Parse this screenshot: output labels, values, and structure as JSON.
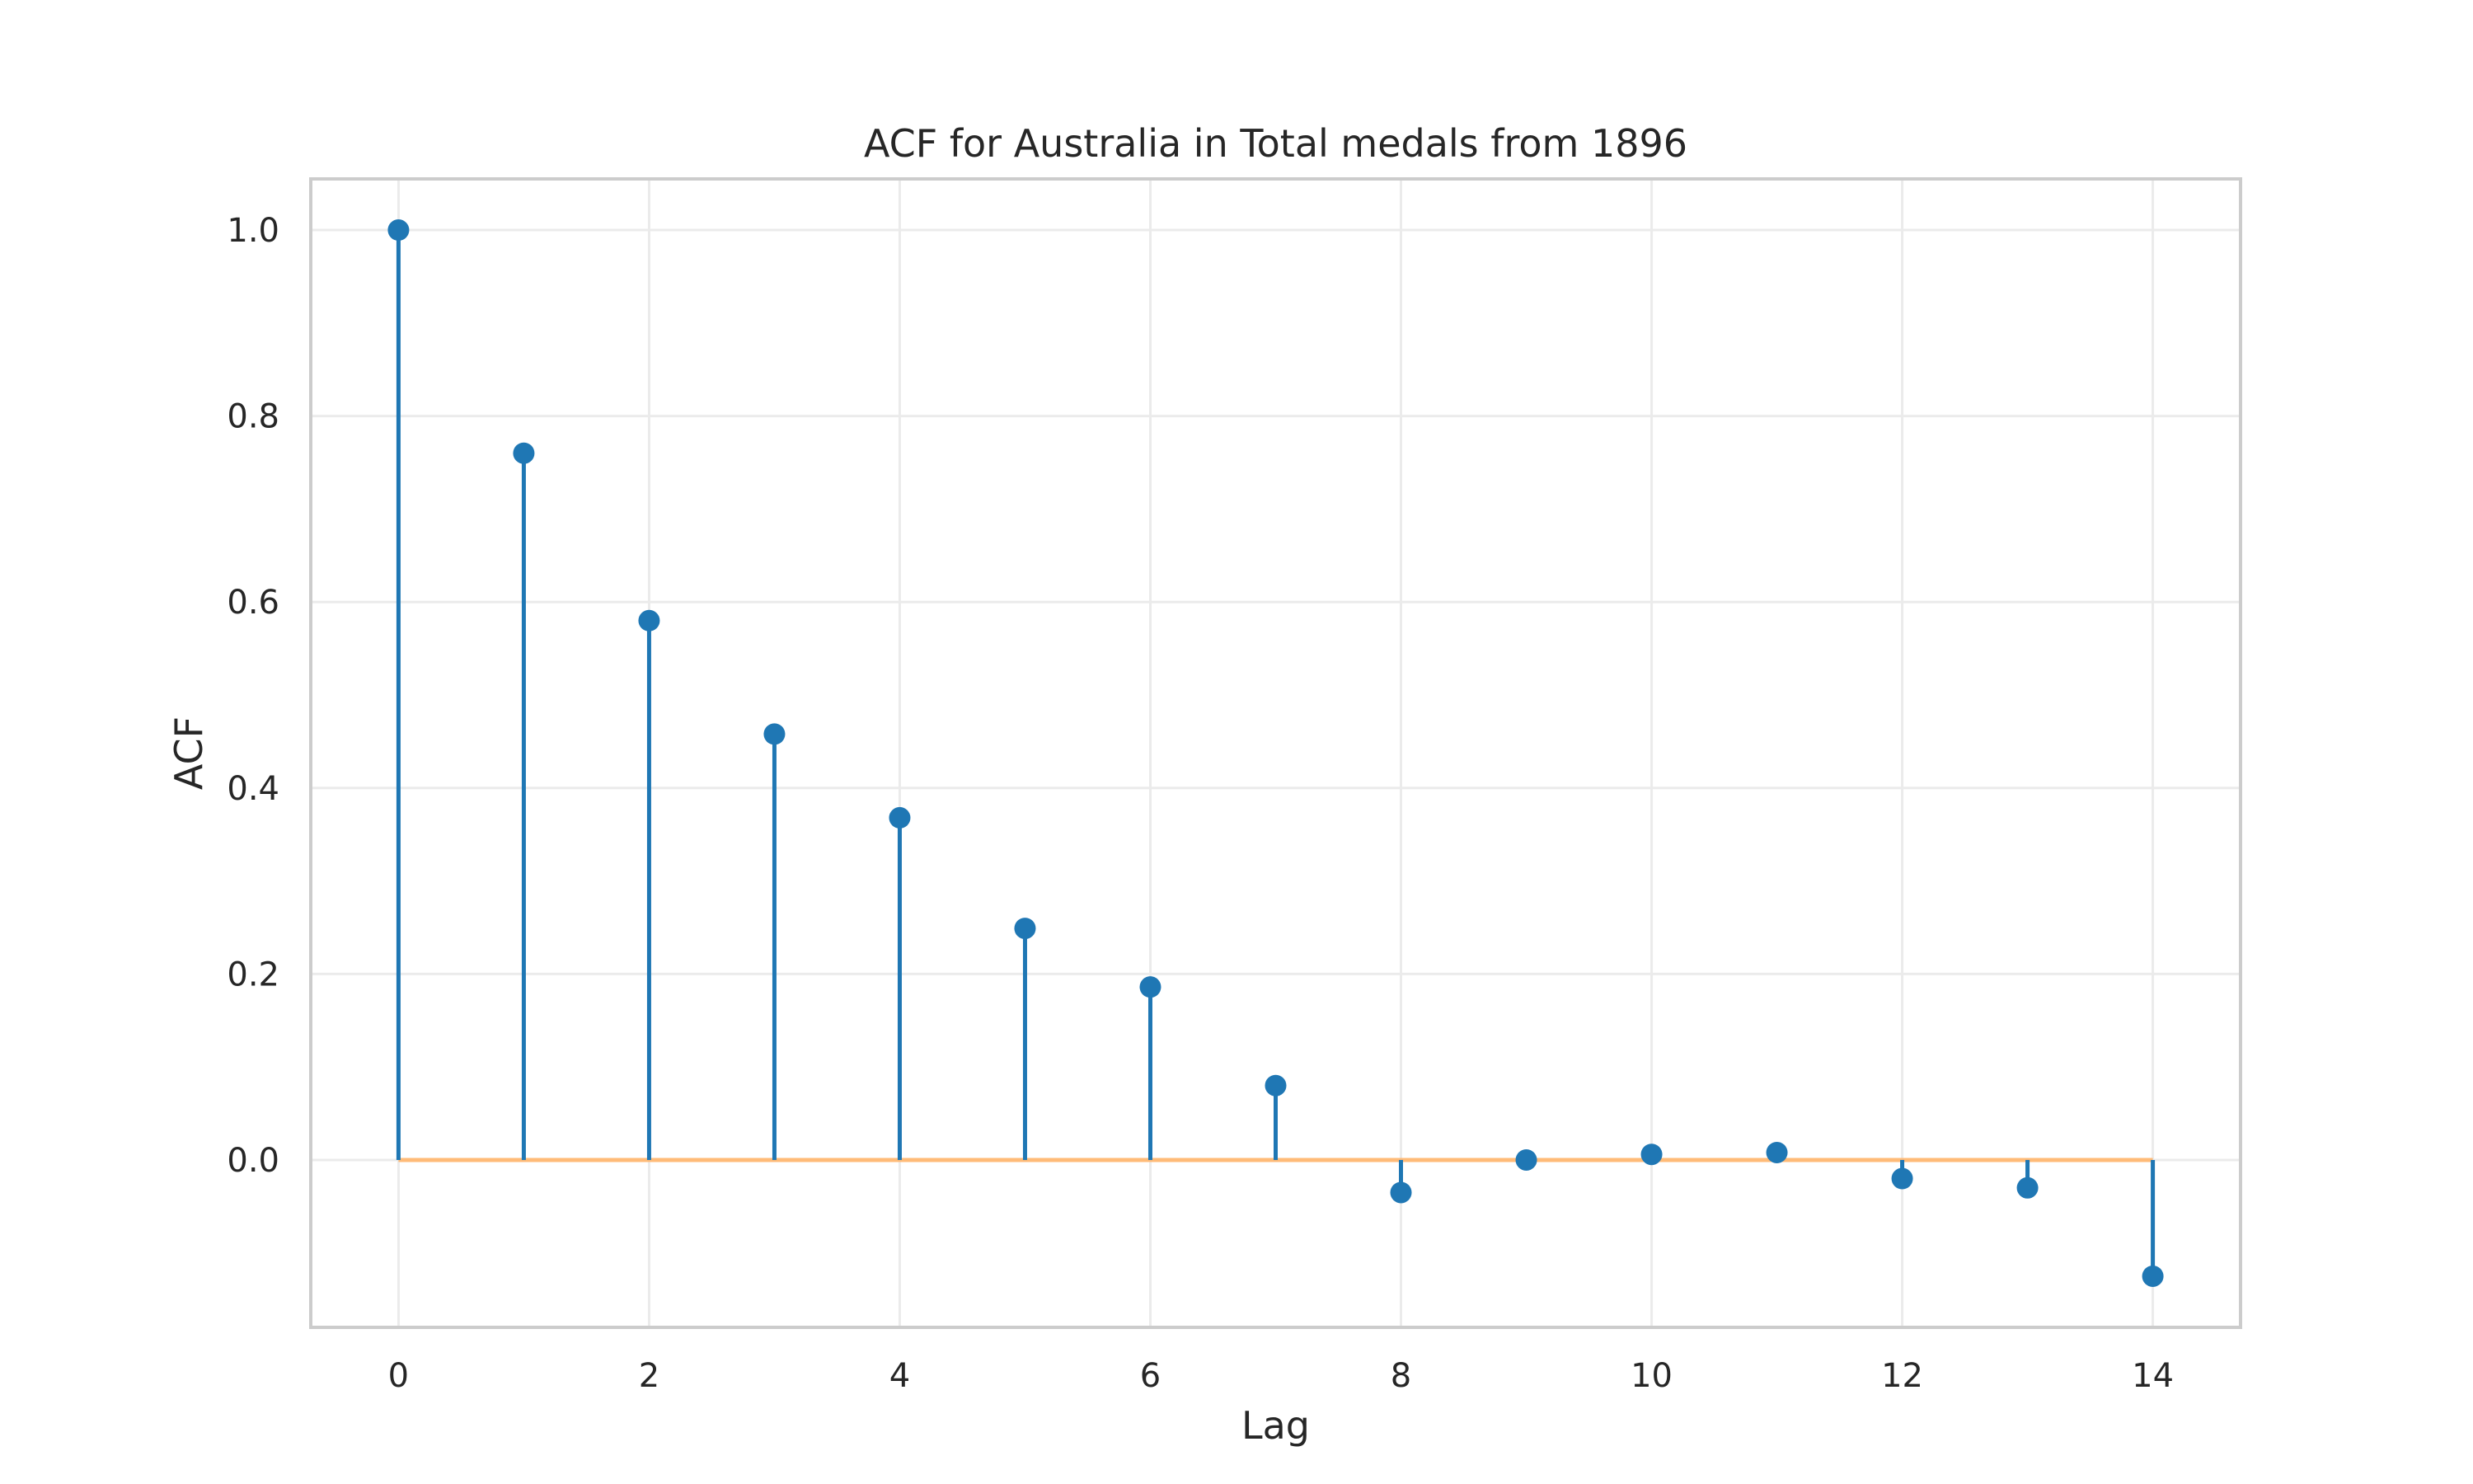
{
  "chart_data": {
    "type": "stem",
    "title": "ACF for Australia in Total medals from 1896",
    "xlabel": "Lag",
    "ylabel": "ACF",
    "x": [
      0,
      1,
      2,
      3,
      4,
      5,
      6,
      7,
      8,
      9,
      10,
      11,
      12,
      13,
      14
    ],
    "values": [
      1.0,
      0.76,
      0.58,
      0.458,
      0.368,
      0.249,
      0.186,
      0.08,
      -0.035,
      0.0,
      0.006,
      0.008,
      -0.02,
      -0.03,
      -0.125
    ],
    "xlim": [
      -0.7,
      14.7
    ],
    "ylim": [
      -0.18,
      1.055
    ],
    "xticks": [
      0,
      2,
      4,
      6,
      8,
      10,
      12,
      14
    ],
    "xtick_labels": [
      "0",
      "2",
      "4",
      "6",
      "8",
      "10",
      "12",
      "14"
    ],
    "yticks": [
      0.0,
      0.2,
      0.4,
      0.6,
      0.8,
      1.0
    ],
    "ytick_labels": [
      "0.0",
      "0.2",
      "0.4",
      "0.6",
      "0.8",
      "1.0"
    ],
    "baseline": 0.0,
    "grid": true,
    "colors": {
      "stem": "#1f77b4",
      "baseline": "#ffbb78"
    }
  }
}
